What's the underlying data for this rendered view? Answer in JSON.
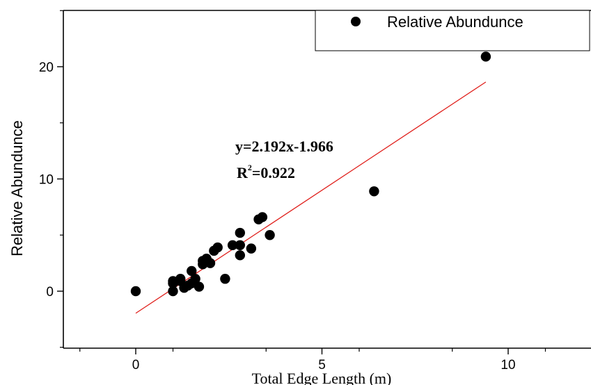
{
  "chart_data": {
    "type": "scatter",
    "title": "",
    "xlabel": "Total Edge Length (m)",
    "ylabel": "Relative Abundunce",
    "xlim": [
      -2,
      12
    ],
    "ylim": [
      -5,
      25
    ],
    "x_ticks": [
      0,
      5,
      10
    ],
    "y_ticks": [
      0,
      10,
      20
    ],
    "x_tick_labels": [
      "0",
      "5",
      "10"
    ],
    "y_tick_labels": [
      "0",
      "10",
      "20"
    ],
    "grid": false,
    "legend": {
      "position": "top-right",
      "entries": [
        "Relative Abundunce"
      ]
    },
    "series": [
      {
        "name": "Relative Abundunce",
        "color": "#000000",
        "x": [
          0.0,
          1.0,
          1.0,
          1.0,
          1.2,
          1.2,
          1.3,
          1.4,
          1.5,
          1.5,
          1.6,
          1.7,
          1.8,
          1.8,
          1.9,
          2.0,
          2.1,
          2.2,
          2.4,
          2.6,
          2.8,
          2.8,
          2.8,
          3.1,
          3.3,
          3.4,
          3.6,
          6.4,
          9.4
        ],
        "y": [
          0.0,
          0.0,
          0.7,
          0.9,
          0.9,
          1.1,
          0.3,
          0.5,
          0.7,
          1.8,
          1.1,
          0.4,
          2.4,
          2.7,
          2.9,
          2.5,
          3.6,
          3.9,
          1.1,
          4.1,
          3.2,
          4.1,
          5.2,
          3.8,
          6.4,
          6.6,
          5.0,
          8.9,
          20.9
        ]
      }
    ],
    "fit_line": {
      "color": "#e0201c",
      "slope": 2.192,
      "intercept": -1.966,
      "x_range": [
        0,
        9.4
      ]
    },
    "annotations": [
      {
        "text": "y=2.192x-1.966"
      },
      {
        "text_main": "R",
        "sup": "2",
        "text_rest": "=0.922"
      }
    ]
  }
}
